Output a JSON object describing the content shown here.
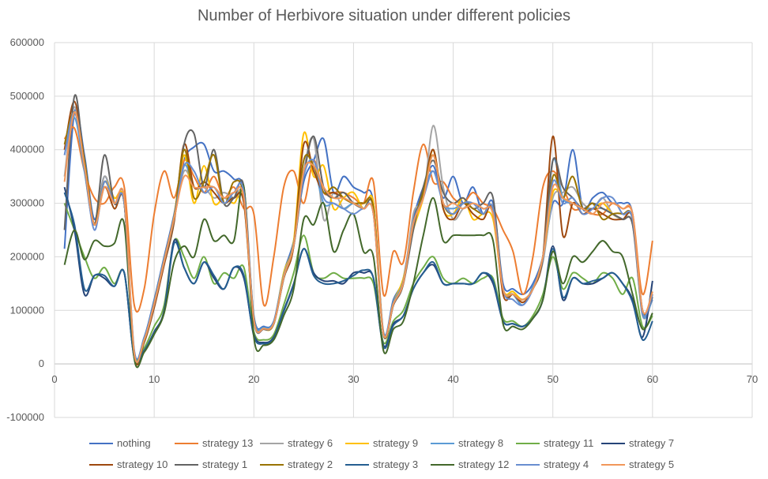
{
  "chart_data": {
    "type": "scatter",
    "title": "Number of Herbivore situation under different policies",
    "xlabel": "",
    "ylabel": "",
    "xlim": [
      0,
      70
    ],
    "ylim": [
      -100000,
      600000
    ],
    "xticks": [
      "0",
      "10",
      "20",
      "30",
      "40",
      "50",
      "60",
      "70"
    ],
    "yticks": [
      "-100000",
      "0",
      "100000",
      "200000",
      "300000",
      "400000",
      "500000",
      "600000"
    ],
    "grid": true,
    "legend_position": "bottom",
    "x": [
      1,
      2,
      3,
      4,
      5,
      6,
      7,
      8,
      9,
      10,
      11,
      12,
      13,
      14,
      15,
      16,
      17,
      18,
      19,
      20,
      21,
      22,
      23,
      24,
      25,
      26,
      27,
      28,
      29,
      30,
      31,
      32,
      33,
      34,
      35,
      36,
      37,
      38,
      39,
      40,
      41,
      42,
      43,
      44,
      45,
      46,
      47,
      48,
      49,
      50,
      51,
      52,
      53,
      54,
      55,
      56,
      57,
      58,
      59,
      60
    ],
    "series": [
      {
        "name": "nothing",
        "color": "#4472C4",
        "values": [
          215000,
          470000,
          390000,
          270000,
          350000,
          300000,
          310000,
          25000,
          50000,
          120000,
          200000,
          280000,
          380000,
          405000,
          410000,
          360000,
          360000,
          345000,
          320000,
          90000,
          70000,
          80000,
          170000,
          230000,
          340000,
          380000,
          420000,
          320000,
          350000,
          330000,
          320000,
          300000,
          60000,
          120000,
          160000,
          270000,
          330000,
          370000,
          310000,
          350000,
          300000,
          330000,
          280000,
          300000,
          150000,
          140000,
          130000,
          150000,
          200000,
          300000,
          300000,
          400000,
          290000,
          310000,
          320000,
          300000,
          300000,
          280000,
          100000,
          120000
        ]
      },
      {
        "name": "strategy 13",
        "color": "#ED7D31",
        "values": [
          420000,
          440000,
          360000,
          310000,
          300000,
          330000,
          330000,
          110000,
          140000,
          280000,
          360000,
          310000,
          380000,
          350000,
          320000,
          350000,
          310000,
          330000,
          290000,
          280000,
          110000,
          200000,
          330000,
          360000,
          300000,
          380000,
          320000,
          320000,
          320000,
          310000,
          300000,
          340000,
          130000,
          210000,
          190000,
          320000,
          410000,
          340000,
          340000,
          310000,
          300000,
          320000,
          300000,
          290000,
          250000,
          210000,
          130000,
          200000,
          330000,
          360000,
          330000,
          290000,
          290000,
          280000,
          280000,
          300000,
          290000,
          280000,
          130000,
          230000
        ]
      },
      {
        "name": "strategy 6",
        "color": "#A5A5A5",
        "values": [
          350000,
          480000,
          360000,
          260000,
          350000,
          300000,
          300000,
          20000,
          45000,
          110000,
          190000,
          270000,
          360000,
          330000,
          330000,
          310000,
          320000,
          310000,
          310000,
          80000,
          65000,
          75000,
          160000,
          220000,
          360000,
          420000,
          270000,
          320000,
          290000,
          300000,
          290000,
          280000,
          55000,
          110000,
          150000,
          280000,
          310000,
          445000,
          330000,
          270000,
          290000,
          300000,
          290000,
          280000,
          140000,
          130000,
          120000,
          140000,
          190000,
          310000,
          320000,
          330000,
          300000,
          290000,
          310000,
          280000,
          270000,
          260000,
          90000,
          125000
        ]
      },
      {
        "name": "strategy 9",
        "color": "#FFC000",
        "values": [
          400000,
          470000,
          380000,
          260000,
          340000,
          310000,
          300000,
          20000,
          45000,
          115000,
          195000,
          275000,
          390000,
          300000,
          370000,
          300000,
          310000,
          300000,
          310000,
          85000,
          65000,
          75000,
          170000,
          230000,
          430000,
          350000,
          370000,
          290000,
          310000,
          320000,
          290000,
          300000,
          55000,
          115000,
          160000,
          250000,
          310000,
          400000,
          290000,
          280000,
          310000,
          270000,
          280000,
          270000,
          140000,
          135000,
          120000,
          140000,
          200000,
          320000,
          310000,
          300000,
          290000,
          290000,
          300000,
          280000,
          270000,
          270000,
          95000,
          130000
        ]
      },
      {
        "name": "strategy 8",
        "color": "#5B9BD5",
        "values": [
          390000,
          460000,
          360000,
          260000,
          330000,
          300000,
          300000,
          22000,
          48000,
          115000,
          195000,
          270000,
          370000,
          330000,
          330000,
          330000,
          310000,
          310000,
          300000,
          85000,
          68000,
          78000,
          165000,
          225000,
          380000,
          370000,
          300000,
          300000,
          290000,
          300000,
          290000,
          280000,
          58000,
          115000,
          155000,
          260000,
          320000,
          360000,
          300000,
          290000,
          300000,
          300000,
          290000,
          280000,
          140000,
          130000,
          110000,
          145000,
          195000,
          380000,
          310000,
          300000,
          290000,
          290000,
          290000,
          280000,
          270000,
          270000,
          92000,
          125000
        ]
      },
      {
        "name": "strategy 11",
        "color": "#70AD47",
        "values": [
          300000,
          250000,
          200000,
          160000,
          180000,
          150000,
          170000,
          15000,
          30000,
          70000,
          110000,
          230000,
          200000,
          160000,
          200000,
          150000,
          170000,
          160000,
          180000,
          60000,
          45000,
          55000,
          110000,
          170000,
          240000,
          170000,
          160000,
          170000,
          160000,
          160000,
          160000,
          150000,
          40000,
          80000,
          100000,
          150000,
          180000,
          200000,
          160000,
          150000,
          160000,
          150000,
          160000,
          160000,
          85000,
          80000,
          70000,
          90000,
          130000,
          200000,
          140000,
          170000,
          160000,
          150000,
          170000,
          160000,
          130000,
          160000,
          70000,
          90000
        ]
      },
      {
        "name": "strategy 7",
        "color": "#264478",
        "values": [
          330000,
          250000,
          130000,
          165000,
          160000,
          145000,
          170000,
          12000,
          25000,
          60000,
          100000,
          230000,
          180000,
          150000,
          190000,
          160000,
          140000,
          180000,
          160000,
          55000,
          40000,
          50000,
          100000,
          150000,
          215000,
          170000,
          155000,
          155000,
          150000,
          170000,
          170000,
          160000,
          35000,
          75000,
          90000,
          140000,
          170000,
          185000,
          150000,
          150000,
          150000,
          150000,
          170000,
          150000,
          80000,
          75000,
          70000,
          85000,
          120000,
          220000,
          120000,
          160000,
          150000,
          150000,
          160000,
          170000,
          150000,
          120000,
          50000,
          155000
        ]
      },
      {
        "name": "strategy 10",
        "color": "#9E480E",
        "values": [
          400000,
          490000,
          380000,
          260000,
          330000,
          290000,
          300000,
          15000,
          40000,
          105000,
          185000,
          265000,
          410000,
          330000,
          340000,
          320000,
          300000,
          310000,
          300000,
          80000,
          65000,
          75000,
          160000,
          220000,
          410000,
          360000,
          320000,
          320000,
          310000,
          300000,
          300000,
          290000,
          55000,
          110000,
          150000,
          260000,
          320000,
          400000,
          290000,
          270000,
          300000,
          280000,
          270000,
          290000,
          130000,
          130000,
          115000,
          140000,
          200000,
          425000,
          240000,
          300000,
          280000,
          290000,
          280000,
          270000,
          270000,
          270000,
          95000,
          130000
        ]
      },
      {
        "name": "strategy 1",
        "color": "#636363",
        "values": [
          250000,
          500000,
          370000,
          260000,
          390000,
          300000,
          300000,
          18000,
          42000,
          110000,
          190000,
          270000,
          410000,
          430000,
          330000,
          400000,
          300000,
          310000,
          330000,
          85000,
          65000,
          75000,
          160000,
          220000,
          350000,
          425000,
          330000,
          310000,
          320000,
          300000,
          290000,
          290000,
          55000,
          110000,
          150000,
          250000,
          330000,
          380000,
          320000,
          300000,
          310000,
          290000,
          300000,
          310000,
          140000,
          130000,
          120000,
          140000,
          200000,
          380000,
          330000,
          310000,
          290000,
          300000,
          290000,
          280000,
          270000,
          260000,
          100000,
          125000
        ]
      },
      {
        "name": "strategy 2",
        "color": "#997300",
        "values": [
          410000,
          470000,
          380000,
          260000,
          340000,
          300000,
          300000,
          18000,
          43000,
          112000,
          192000,
          272000,
          400000,
          310000,
          340000,
          390000,
          300000,
          340000,
          310000,
          82000,
          66000,
          76000,
          162000,
          222000,
          380000,
          370000,
          320000,
          330000,
          310000,
          300000,
          300000,
          290000,
          56000,
          112000,
          152000,
          262000,
          320000,
          390000,
          300000,
          280000,
          300000,
          290000,
          280000,
          290000,
          140000,
          130000,
          120000,
          140000,
          200000,
          350000,
          310000,
          350000,
          290000,
          300000,
          270000,
          280000,
          280000,
          270000,
          98000,
          135000
        ]
      },
      {
        "name": "strategy 3",
        "color": "#255E91",
        "values": [
          320000,
          260000,
          140000,
          165000,
          165000,
          145000,
          170000,
          12000,
          25000,
          58000,
          98000,
          225000,
          180000,
          150000,
          190000,
          165000,
          140000,
          180000,
          165000,
          52000,
          38000,
          48000,
          98000,
          148000,
          215000,
          165000,
          150000,
          150000,
          155000,
          165000,
          175000,
          160000,
          32000,
          72000,
          90000,
          140000,
          170000,
          190000,
          150000,
          150000,
          150000,
          150000,
          170000,
          155000,
          80000,
          75000,
          70000,
          85000,
          120000,
          215000,
          125000,
          160000,
          150000,
          155000,
          160000,
          170000,
          150000,
          115000,
          45000,
          80000
        ]
      },
      {
        "name": "strategy 12",
        "color": "#43682B",
        "values": [
          185000,
          250000,
          195000,
          230000,
          220000,
          225000,
          260000,
          10000,
          22000,
          55000,
          95000,
          190000,
          220000,
          200000,
          270000,
          230000,
          240000,
          230000,
          330000,
          50000,
          35000,
          45000,
          90000,
          140000,
          270000,
          260000,
          300000,
          210000,
          250000,
          280000,
          210000,
          200000,
          25000,
          65000,
          80000,
          150000,
          240000,
          310000,
          230000,
          240000,
          240000,
          240000,
          240000,
          230000,
          75000,
          70000,
          65000,
          85000,
          120000,
          210000,
          150000,
          200000,
          190000,
          210000,
          230000,
          210000,
          200000,
          130000,
          65000,
          95000
        ]
      },
      {
        "name": "strategy 4",
        "color": "#698ED0",
        "values": [
          390000,
          470000,
          370000,
          250000,
          340000,
          300000,
          300000,
          20000,
          45000,
          112000,
          192000,
          272000,
          370000,
          360000,
          320000,
          330000,
          300000,
          320000,
          320000,
          82000,
          66000,
          76000,
          162000,
          222000,
          350000,
          380000,
          310000,
          300000,
          290000,
          280000,
          290000,
          280000,
          56000,
          112000,
          152000,
          262000,
          310000,
          360000,
          300000,
          280000,
          300000,
          300000,
          280000,
          290000,
          140000,
          120000,
          110000,
          140000,
          200000,
          340000,
          300000,
          310000,
          280000,
          290000,
          310000,
          310000,
          280000,
          270000,
          95000,
          130000
        ]
      },
      {
        "name": "strategy 5",
        "color": "#F1975A",
        "values": [
          340000,
          470000,
          370000,
          260000,
          330000,
          300000,
          310000,
          20000,
          45000,
          112000,
          192000,
          272000,
          350000,
          330000,
          330000,
          330000,
          310000,
          320000,
          310000,
          82000,
          66000,
          76000,
          162000,
          222000,
          360000,
          370000,
          330000,
          310000,
          310000,
          300000,
          290000,
          280000,
          56000,
          112000,
          152000,
          262000,
          310000,
          390000,
          300000,
          300000,
          290000,
          300000,
          290000,
          280000,
          140000,
          130000,
          120000,
          140000,
          200000,
          330000,
          310000,
          300000,
          290000,
          280000,
          300000,
          300000,
          290000,
          280000,
          100000,
          135000
        ]
      }
    ]
  }
}
